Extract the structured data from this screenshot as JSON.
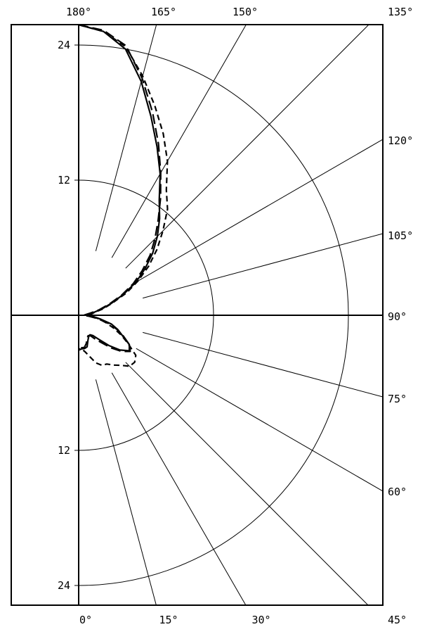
{
  "chart_data": {
    "type": "polar",
    "radial_ticks_upper": [
      "24",
      "12"
    ],
    "radial_ticks_lower": [
      "12",
      "24"
    ],
    "radial_tick_values": [
      12,
      24
    ],
    "angle_labels": [
      {
        "deg": 180,
        "text": "180°"
      },
      {
        "deg": 165,
        "text": "165°"
      },
      {
        "deg": 150,
        "text": "150°"
      },
      {
        "deg": 135,
        "text": "135°"
      },
      {
        "deg": 120,
        "text": "120°"
      },
      {
        "deg": 105,
        "text": "105°"
      },
      {
        "deg": 90,
        "text": "90°"
      },
      {
        "deg": 75,
        "text": "75°"
      },
      {
        "deg": 60,
        "text": "60°"
      },
      {
        "deg": 45,
        "text": "45°"
      },
      {
        "deg": 30,
        "text": "30°"
      },
      {
        "deg": 15,
        "text": "15°"
      },
      {
        "deg": 0,
        "text": "0°"
      }
    ],
    "spoke_angles": [
      15,
      30,
      45,
      60,
      75,
      105,
      120,
      135,
      150,
      165
    ],
    "rmax": 25.8,
    "series": [
      {
        "style": "solid",
        "points": [
          [
            180,
            25.8
          ],
          [
            175,
            25.3
          ],
          [
            170,
            24.0
          ],
          [
            165,
            21.5
          ],
          [
            160,
            18.8
          ],
          [
            155,
            16.5
          ],
          [
            150,
            14.5
          ],
          [
            145,
            12.5
          ],
          [
            140,
            11.2
          ],
          [
            135,
            9.9
          ],
          [
            130,
            8.6
          ],
          [
            125,
            7.2
          ],
          [
            120,
            5.9
          ],
          [
            115,
            4.4
          ],
          [
            110,
            3.1
          ],
          [
            105,
            2.1
          ],
          [
            100,
            1.3
          ],
          [
            95,
            0.9
          ],
          [
            90,
            0.9
          ],
          [
            85,
            1.3
          ],
          [
            80,
            2.0
          ],
          [
            75,
            3.0
          ],
          [
            70,
            3.7
          ],
          [
            65,
            4.3
          ],
          [
            60,
            5.2
          ],
          [
            55,
            5.5
          ],
          [
            50,
            4.8
          ],
          [
            45,
            3.8
          ],
          [
            40,
            2.8
          ],
          [
            35,
            2.2
          ],
          [
            30,
            2.0
          ],
          [
            25,
            2.1
          ],
          [
            20,
            2.4
          ],
          [
            15,
            2.9
          ],
          [
            10,
            3.0
          ],
          [
            5,
            3.0
          ],
          [
            0,
            3.1
          ]
        ]
      },
      {
        "style": "dashed",
        "points": [
          [
            180,
            25.8
          ],
          [
            175,
            25.3
          ],
          [
            170,
            24.2
          ],
          [
            165,
            22.0
          ],
          [
            160,
            19.8
          ],
          [
            155,
            17.8
          ],
          [
            150,
            15.8
          ],
          [
            145,
            13.6
          ],
          [
            140,
            12.3
          ],
          [
            135,
            10.6
          ],
          [
            130,
            9.1
          ],
          [
            125,
            7.6
          ],
          [
            120,
            6.1
          ],
          [
            115,
            4.7
          ],
          [
            110,
            3.2
          ],
          [
            105,
            2.3
          ],
          [
            100,
            1.4
          ],
          [
            95,
            1.1
          ],
          [
            90,
            1.0
          ],
          [
            85,
            1.2
          ],
          [
            80,
            1.8
          ],
          [
            75,
            2.5
          ],
          [
            70,
            3.3
          ],
          [
            65,
            4.2
          ],
          [
            60,
            5.1
          ],
          [
            55,
            6.2
          ],
          [
            50,
            6.5
          ],
          [
            45,
            6.4
          ],
          [
            40,
            5.8
          ],
          [
            35,
            5.4
          ],
          [
            30,
            5.0
          ],
          [
            25,
            4.9
          ],
          [
            20,
            4.5
          ],
          [
            15,
            3.8
          ],
          [
            10,
            3.3
          ],
          [
            5,
            3.0
          ],
          [
            0,
            3.0
          ]
        ]
      },
      {
        "style": "longdash",
        "points": [
          [
            180,
            25.8
          ],
          [
            175,
            25.4
          ],
          [
            170,
            24.3
          ],
          [
            165,
            21.8
          ],
          [
            160,
            19.2
          ],
          [
            155,
            16.8
          ],
          [
            150,
            14.6
          ],
          [
            145,
            12.7
          ],
          [
            140,
            11.0
          ],
          [
            135,
            9.6
          ],
          [
            130,
            8.3
          ],
          [
            125,
            6.9
          ],
          [
            120,
            5.6
          ],
          [
            115,
            4.2
          ],
          [
            110,
            2.9
          ],
          [
            105,
            1.9
          ],
          [
            100,
            1.0
          ],
          [
            95,
            0.6
          ],
          [
            90,
            0.4
          ],
          [
            85,
            0.9
          ],
          [
            80,
            1.7
          ],
          [
            75,
            2.7
          ],
          [
            70,
            3.6
          ],
          [
            65,
            4.4
          ],
          [
            60,
            5.2
          ],
          [
            55,
            5.6
          ],
          [
            50,
            5.0
          ],
          [
            45,
            4.1
          ],
          [
            40,
            3.2
          ],
          [
            35,
            2.6
          ],
          [
            30,
            2.1
          ],
          [
            25,
            2.0
          ],
          [
            20,
            2.2
          ],
          [
            15,
            2.6
          ],
          [
            10,
            2.9
          ],
          [
            5,
            2.9
          ],
          [
            0,
            3.0
          ]
        ]
      }
    ]
  }
}
